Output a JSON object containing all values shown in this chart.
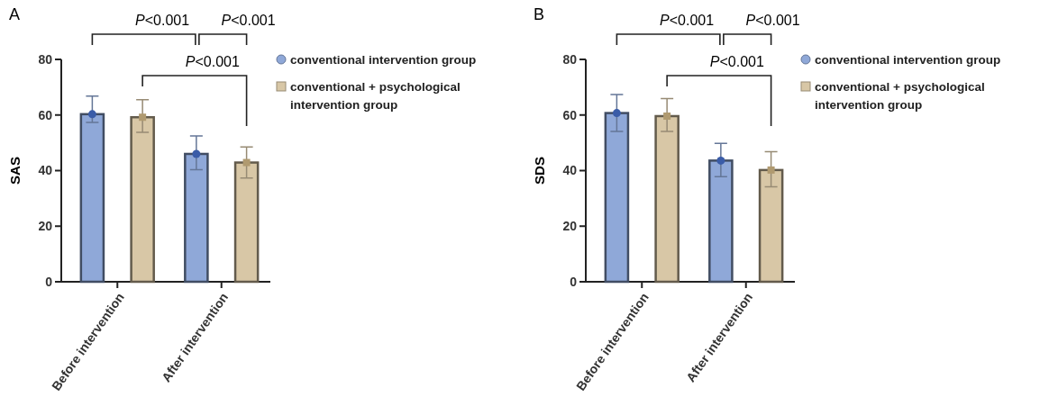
{
  "chart_data": [
    {
      "type": "bar",
      "title": "A",
      "ylabel": "SAS",
      "categories": [
        "Before intervention",
        "After intervention"
      ],
      "ylim": [
        0,
        80
      ],
      "yticks": [
        0,
        20,
        40,
        60,
        80
      ],
      "legend": "right",
      "annotations": [
        "P<0.001",
        "P<0.001",
        "P<0.001"
      ],
      "series": [
        {
          "name": "conventional intervention group",
          "color": "#8fa8d8",
          "values": [
            60.3,
            46
          ],
          "errors": [
            [
              57.3,
              66.8
            ],
            [
              40.3,
              52.5
            ]
          ]
        },
        {
          "name": "conventional + psychological intervention group",
          "color": "#d8c7a6",
          "values": [
            59.2,
            42.9
          ],
          "errors": [
            [
              53.8,
              65.5
            ],
            [
              37.3,
              48.5
            ]
          ]
        },
        {
          "type": "scatter",
          "color": "#3a5ca8",
          "marker": "circle",
          "x": [
            "Before intervention",
            "After intervention"
          ],
          "values": [
            60.3,
            46
          ]
        },
        {
          "type": "scatter",
          "color": "#b09a70",
          "marker": "square",
          "x": [
            "Before intervention",
            "After intervention"
          ],
          "values": [
            59.2,
            42.9
          ]
        }
      ]
    },
    {
      "type": "bar",
      "title": "B",
      "ylabel": "SDS",
      "categories": [
        "Before intervention",
        "After intervention"
      ],
      "ylim": [
        0,
        80
      ],
      "yticks": [
        0,
        20,
        40,
        60,
        80
      ],
      "legend": "right",
      "annotations": [
        "P<0.001",
        "P<0.001",
        "P<0.001"
      ],
      "series": [
        {
          "name": "conventional intervention group",
          "color": "#8fa8d8",
          "values": [
            60.7,
            43.6
          ],
          "errors": [
            [
              54.1,
              67.4
            ],
            [
              37.8,
              49.8
            ]
          ]
        },
        {
          "name": "conventional + psychological intervention group",
          "color": "#d8c7a6",
          "values": [
            59.6,
            40.2
          ],
          "errors": [
            [
              54.1,
              65.9
            ],
            [
              34.2,
              46.8
            ]
          ]
        },
        {
          "type": "scatter",
          "color": "#3a5ca8",
          "marker": "circle",
          "x": [
            "Before intervention",
            "After intervention"
          ],
          "values": [
            60.7,
            43.6
          ]
        },
        {
          "type": "scatter",
          "color": "#b09a70",
          "marker": "square",
          "x": [
            "Before intervention",
            "After intervention"
          ],
          "values": [
            59.6,
            40.2
          ]
        }
      ]
    }
  ]
}
